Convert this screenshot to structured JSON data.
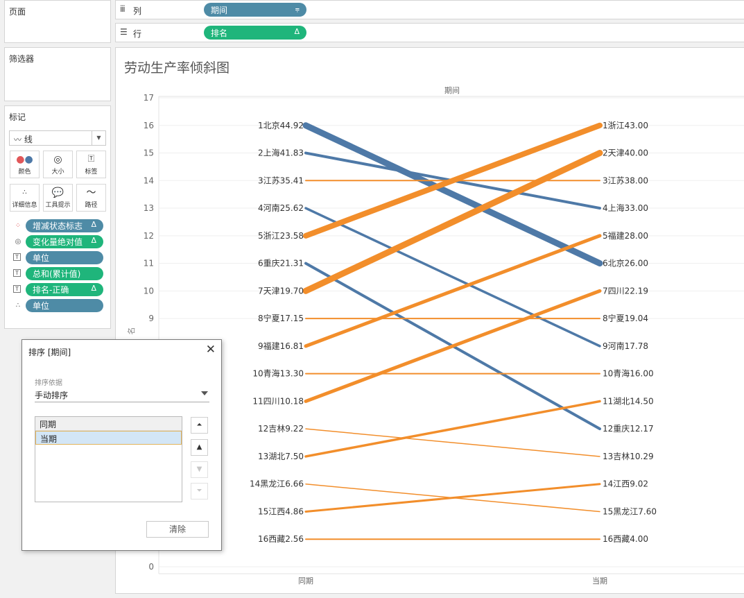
{
  "pages_panel": {
    "title": "页面"
  },
  "filters_panel": {
    "title": "筛选器"
  },
  "marks_panel": {
    "title": "标记",
    "mark_type": "线",
    "buttons": [
      "颜色",
      "大小",
      "标签",
      "详细信息",
      "工具提示",
      "路径"
    ],
    "fields": [
      {
        "name": "增减状态标志",
        "color": "blue",
        "glyph": "Δ",
        "icon": "color-dots-icon"
      },
      {
        "name": "变化量绝对值",
        "color": "green",
        "glyph": "Δ",
        "icon": "size-icon"
      },
      {
        "name": "单位",
        "color": "blue",
        "glyph": "",
        "icon": "label-icon"
      },
      {
        "name": "总和(累计值)",
        "color": "green",
        "glyph": "",
        "icon": "label-icon"
      },
      {
        "name": "排名-正确",
        "color": "green",
        "glyph": "Δ",
        "icon": "label-icon"
      },
      {
        "name": "单位",
        "color": "blue",
        "glyph": "",
        "icon": "detail-icon"
      }
    ]
  },
  "columns_shelf": {
    "label": "列",
    "pill": "期间"
  },
  "rows_shelf": {
    "label": "行",
    "pill": "排名"
  },
  "view": {
    "title": "劳动生产率倾斜图",
    "header": "期间",
    "axis_label_partial": "名"
  },
  "chart_data": {
    "type": "line",
    "title": "劳动生产率倾斜图",
    "x_header": "期间",
    "categories": [
      "同期",
      "当期"
    ],
    "ylim": [
      0,
      17
    ],
    "y_ticks": [
      0,
      9,
      10,
      11,
      12,
      13,
      14,
      15,
      16,
      17
    ],
    "grid": true,
    "colors": {
      "up": "#f28e2b",
      "down": "#4e79a7"
    },
    "series": [
      {
        "name": "北京",
        "from": 16,
        "to": 11,
        "left_label": "1北京44.92",
        "right_label": "6北京26.00",
        "dir": "down",
        "width": 9
      },
      {
        "name": "上海",
        "from": 15,
        "to": 13,
        "left_label": "2上海41.83",
        "right_label": "4上海33.00",
        "dir": "down",
        "width": 4
      },
      {
        "name": "江苏",
        "from": 14,
        "to": 14,
        "left_label": "3江苏35.41",
        "right_label": "3江苏38.00",
        "dir": "up",
        "width": 2
      },
      {
        "name": "河南",
        "from": 13,
        "to": 8,
        "left_label": "4河南25.62",
        "right_label": "9河南17.78",
        "dir": "down",
        "width": 3.5
      },
      {
        "name": "浙江",
        "from": 12,
        "to": 16,
        "left_label": "5浙江23.58",
        "right_label": "1浙江43.00",
        "dir": "up",
        "width": 8
      },
      {
        "name": "重庆",
        "from": 11,
        "to": 5,
        "left_label": "6重庆21.31",
        "right_label": "12重庆12.17",
        "dir": "down",
        "width": 4
      },
      {
        "name": "天津",
        "from": 10,
        "to": 15,
        "left_label": "7天津19.70",
        "right_label": "2天津40.00",
        "dir": "up",
        "width": 9
      },
      {
        "name": "宁夏",
        "from": 9,
        "to": 9,
        "left_label": "8宁夏17.15",
        "right_label": "8宁夏19.04",
        "dir": "up",
        "width": 2
      },
      {
        "name": "福建",
        "from": 8,
        "to": 12,
        "left_label": "9福建16.81",
        "right_label": "5福建28.00",
        "dir": "up",
        "width": 5
      },
      {
        "name": "青海",
        "from": 7,
        "to": 7,
        "left_label": "10青海13.30",
        "right_label": "10青海16.00",
        "dir": "up",
        "width": 2
      },
      {
        "name": "四川",
        "from": 6,
        "to": 10,
        "left_label": "11四川10.18",
        "right_label": "7四川22.19",
        "dir": "up",
        "width": 5
      },
      {
        "name": "吉林",
        "from": 5,
        "to": 4,
        "left_label": "12吉林9.22",
        "right_label": "13吉林10.29",
        "dir": "up",
        "width": 1.5
      },
      {
        "name": "湖北",
        "from": 4,
        "to": 6,
        "left_label": "13湖北7.50",
        "right_label": "11湖北14.50",
        "dir": "up",
        "width": 3.5
      },
      {
        "name": "黑龙江",
        "from": 3,
        "to": 2,
        "left_label": "14黑龙江6.66",
        "right_label": "15黑龙江7.60",
        "dir": "up",
        "width": 1.5
      },
      {
        "name": "江西",
        "from": 2,
        "to": 3,
        "left_label": "15江西4.86",
        "right_label": "14江西9.02",
        "dir": "up",
        "width": 3
      },
      {
        "name": "西藏",
        "from": 1,
        "to": 1,
        "left_label": "16西藏2.56",
        "right_label": "16西藏4.00",
        "dir": "up",
        "width": 2
      }
    ]
  },
  "sort_dialog": {
    "title": "排序 [期间]",
    "sort_by_label": "排序依据",
    "sort_by_value": "手动排序",
    "items": [
      "同期",
      "当期"
    ],
    "selected_item": "当期",
    "clear_label": "清除"
  }
}
